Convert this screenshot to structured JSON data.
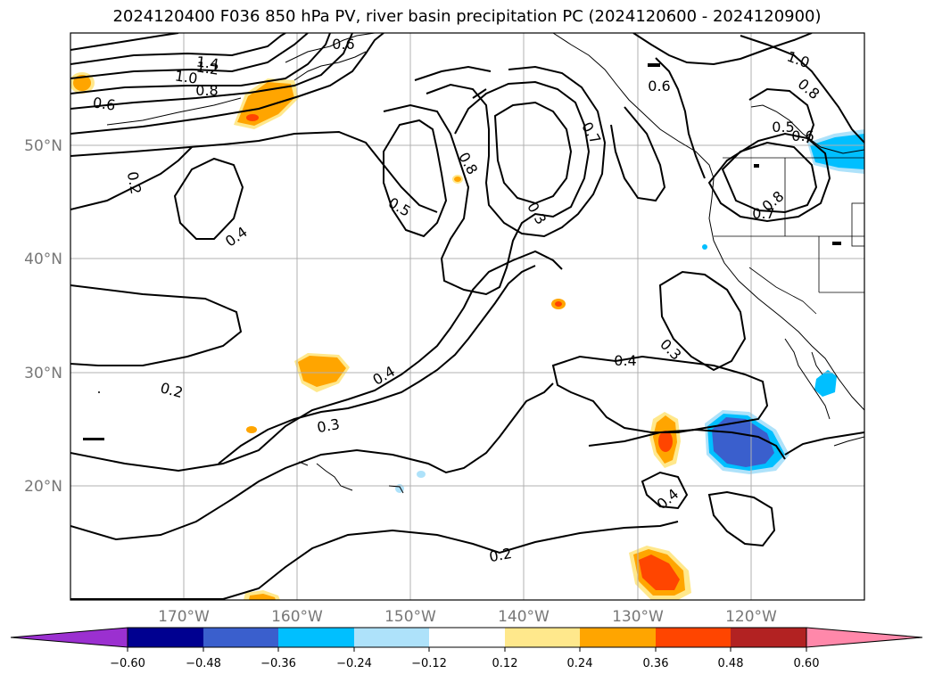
{
  "title": "2024120400 F036 850 hPa PV, river basin precipitation PC (2024120600 - 2024120900)",
  "map": {
    "lon_range": [
      -180,
      -110
    ],
    "lat_range": [
      10,
      60
    ],
    "lat_labels": [
      "50°N",
      "40°N",
      "30°N",
      "20°N"
    ],
    "lon_labels": [
      "170°W",
      "160°W",
      "150°W",
      "140°W",
      "130°W",
      "120°W"
    ],
    "contour_labels": [
      "1.4",
      "1.2",
      "1.0",
      "0.8",
      "0.6",
      "0.6",
      "0.2",
      "0.4",
      "0.5",
      "0.8",
      "0.3",
      "0.6",
      "0.7",
      "1.0",
      "0.8",
      "0.5",
      "0.6",
      "0.7",
      "0.8",
      "0.4",
      "0.3",
      "0.4",
      "0.2",
      "0.3",
      "0.4",
      "0.2"
    ]
  },
  "colorbar": {
    "ticks": [
      "−0.60",
      "−0.48",
      "−0.36",
      "−0.24",
      "−0.12",
      "0.12",
      "0.24",
      "0.36",
      "0.48",
      "0.60"
    ],
    "colors": {
      "below": "#9b30d0",
      "bins": [
        "#000090",
        "#3a5fcd",
        "#00bfff",
        "#aee2fa",
        "#ffffff",
        "#ffe88c",
        "#ffa500",
        "#ff4500",
        "#b22222"
      ],
      "above": "#ff88aa"
    }
  }
}
